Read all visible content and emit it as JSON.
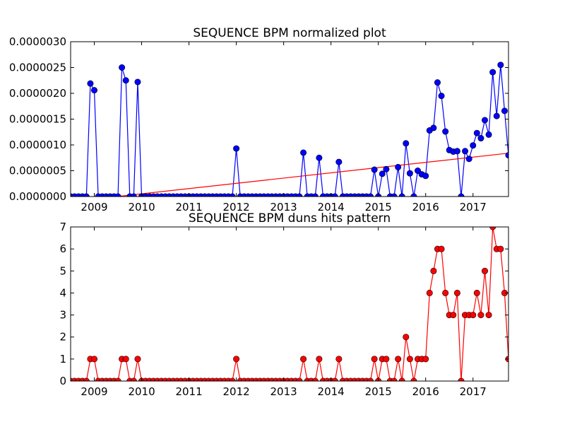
{
  "chart_data": [
    {
      "type": "line",
      "title": "SEQUENCE BPM normalized plot",
      "xlabel": "",
      "ylabel": "",
      "xlim": [
        2008.5,
        2017.75
      ],
      "ylim": [
        0,
        3e-06
      ],
      "xticks": [
        2009,
        2010,
        2011,
        2012,
        2013,
        2014,
        2015,
        2016,
        2017
      ],
      "xtick_labels": [
        "2009",
        "2010",
        "2011",
        "2012",
        "2013",
        "2014",
        "2015",
        "2016",
        "2017"
      ],
      "yticks": [
        0,
        5e-07,
        1e-06,
        1.5e-06,
        2e-06,
        2.5e-06,
        3e-06
      ],
      "ytick_labels": [
        "0.0000000",
        "0.0000005",
        "0.0000010",
        "0.0000015",
        "0.0000020",
        "0.0000025",
        "0.0000030"
      ],
      "grid": false,
      "colors": {
        "series": "#0000ff",
        "trend": "#ff0000"
      },
      "series": [
        {
          "x": [
            2008.5,
            2008.583,
            2008.667,
            2008.75,
            2008.833,
            2008.917,
            2009.0,
            2009.083,
            2009.167,
            2009.25,
            2009.333,
            2009.417,
            2009.5,
            2009.583,
            2009.667,
            2009.75,
            2009.833,
            2009.917,
            2010.0,
            2010.083,
            2010.167,
            2010.25,
            2010.333,
            2010.417,
            2010.5,
            2010.583,
            2010.667,
            2010.75,
            2010.833,
            2010.917,
            2011.0,
            2011.083,
            2011.167,
            2011.25,
            2011.333,
            2011.417,
            2011.5,
            2011.583,
            2011.667,
            2011.75,
            2011.833,
            2011.917,
            2012.0,
            2012.083,
            2012.167,
            2012.25,
            2012.333,
            2012.417,
            2012.5,
            2012.583,
            2012.667,
            2012.75,
            2012.833,
            2012.917,
            2013.0,
            2013.083,
            2013.167,
            2013.25,
            2013.333,
            2013.417,
            2013.5,
            2013.583,
            2013.667,
            2013.75,
            2013.833,
            2013.917,
            2014.0,
            2014.083,
            2014.167,
            2014.25,
            2014.333,
            2014.417,
            2014.5,
            2014.583,
            2014.667,
            2014.75,
            2014.833,
            2014.917,
            2015.0,
            2015.083,
            2015.167,
            2015.25,
            2015.333,
            2015.417,
            2015.5,
            2015.583,
            2015.667,
            2015.75,
            2015.833,
            2015.917,
            2016.0,
            2016.083,
            2016.167,
            2016.25,
            2016.333,
            2016.417,
            2016.5,
            2016.583,
            2016.667,
            2016.75,
            2016.833,
            2016.917,
            2017.0,
            2017.083,
            2017.167,
            2017.25,
            2017.333,
            2017.417,
            2017.5,
            2017.583,
            2017.667,
            2017.75
          ],
          "y": [
            0,
            0,
            0,
            0,
            0,
            2.19e-06,
            2.06e-06,
            0,
            0,
            0,
            0,
            0,
            0,
            2.5e-06,
            2.25e-06,
            0,
            0,
            2.22e-06,
            0,
            0,
            0,
            0,
            0,
            0,
            0,
            0,
            0,
            0,
            0,
            0,
            0,
            0,
            0,
            0,
            0,
            0,
            0,
            0,
            0,
            0,
            0,
            0,
            9.3e-07,
            0,
            0,
            0,
            0,
            0,
            0,
            0,
            0,
            0,
            0,
            0,
            0,
            0,
            0,
            0,
            0,
            8.5e-07,
            0,
            0,
            0,
            7.5e-07,
            0,
            0,
            0,
            0,
            6.7e-07,
            0,
            0,
            0,
            0,
            0,
            0,
            0,
            0,
            5.2e-07,
            0,
            4.4e-07,
            5.3e-07,
            0,
            0,
            5.7e-07,
            0,
            1.03e-06,
            4.5e-07,
            0,
            5e-07,
            4.3e-07,
            4e-07,
            1.28e-06,
            1.33e-06,
            2.21e-06,
            1.95e-06,
            1.26e-06,
            9e-07,
            8.7e-07,
            8.8e-07,
            0,
            8.8e-07,
            7.3e-07,
            9.9e-07,
            1.23e-06,
            1.13e-06,
            1.48e-06,
            1.2e-06,
            2.41e-06,
            1.56e-06,
            2.55e-06,
            1.66e-06,
            8e-07
          ]
        },
        {
          "x": [
            2008.5,
            2017.75
          ],
          "y": [
            -1e-07,
            8.4e-07
          ]
        }
      ]
    },
    {
      "type": "line",
      "title": "SEQUENCE BPM duns hits pattern",
      "xlabel": "",
      "ylabel": "",
      "xlim": [
        2008.5,
        2017.75
      ],
      "ylim": [
        0,
        7
      ],
      "xticks": [
        2009,
        2010,
        2011,
        2012,
        2013,
        2014,
        2015,
        2016,
        2017
      ],
      "xtick_labels": [
        "2009",
        "2010",
        "2011",
        "2012",
        "2013",
        "2014",
        "2015",
        "2016",
        "2017"
      ],
      "yticks": [
        0,
        1,
        2,
        3,
        4,
        5,
        6,
        7
      ],
      "ytick_labels": [
        "0",
        "1",
        "2",
        "3",
        "4",
        "5",
        "6",
        "7"
      ],
      "grid": false,
      "colors": {
        "series": "#ff0000"
      },
      "series": [
        {
          "x": [
            2008.5,
            2008.583,
            2008.667,
            2008.75,
            2008.833,
            2008.917,
            2009.0,
            2009.083,
            2009.167,
            2009.25,
            2009.333,
            2009.417,
            2009.5,
            2009.583,
            2009.667,
            2009.75,
            2009.833,
            2009.917,
            2010.0,
            2010.083,
            2010.167,
            2010.25,
            2010.333,
            2010.417,
            2010.5,
            2010.583,
            2010.667,
            2010.75,
            2010.833,
            2010.917,
            2011.0,
            2011.083,
            2011.167,
            2011.25,
            2011.333,
            2011.417,
            2011.5,
            2011.583,
            2011.667,
            2011.75,
            2011.833,
            2011.917,
            2012.0,
            2012.083,
            2012.167,
            2012.25,
            2012.333,
            2012.417,
            2012.5,
            2012.583,
            2012.667,
            2012.75,
            2012.833,
            2012.917,
            2013.0,
            2013.083,
            2013.167,
            2013.25,
            2013.333,
            2013.417,
            2013.5,
            2013.583,
            2013.667,
            2013.75,
            2013.833,
            2013.917,
            2014.0,
            2014.083,
            2014.167,
            2014.25,
            2014.333,
            2014.417,
            2014.5,
            2014.583,
            2014.667,
            2014.75,
            2014.833,
            2014.917,
            2015.0,
            2015.083,
            2015.167,
            2015.25,
            2015.333,
            2015.417,
            2015.5,
            2015.583,
            2015.667,
            2015.75,
            2015.833,
            2015.917,
            2016.0,
            2016.083,
            2016.167,
            2016.25,
            2016.333,
            2016.417,
            2016.5,
            2016.583,
            2016.667,
            2016.75,
            2016.833,
            2016.917,
            2017.0,
            2017.083,
            2017.167,
            2017.25,
            2017.333,
            2017.417,
            2017.5,
            2017.583,
            2017.667,
            2017.75
          ],
          "y": [
            0,
            0,
            0,
            0,
            0,
            1,
            1,
            0,
            0,
            0,
            0,
            0,
            0,
            1,
            1,
            0,
            0,
            1,
            0,
            0,
            0,
            0,
            0,
            0,
            0,
            0,
            0,
            0,
            0,
            0,
            0,
            0,
            0,
            0,
            0,
            0,
            0,
            0,
            0,
            0,
            0,
            0,
            1,
            0,
            0,
            0,
            0,
            0,
            0,
            0,
            0,
            0,
            0,
            0,
            0,
            0,
            0,
            0,
            0,
            1,
            0,
            0,
            0,
            1,
            0,
            0,
            0,
            0,
            1,
            0,
            0,
            0,
            0,
            0,
            0,
            0,
            0,
            1,
            0,
            1,
            1,
            0,
            0,
            1,
            0,
            2,
            1,
            0,
            1,
            1,
            1,
            4,
            5,
            6,
            6,
            4,
            3,
            3,
            4,
            0,
            3,
            3,
            3,
            4,
            3,
            5,
            3,
            7,
            6,
            6,
            4,
            1
          ]
        }
      ]
    }
  ]
}
